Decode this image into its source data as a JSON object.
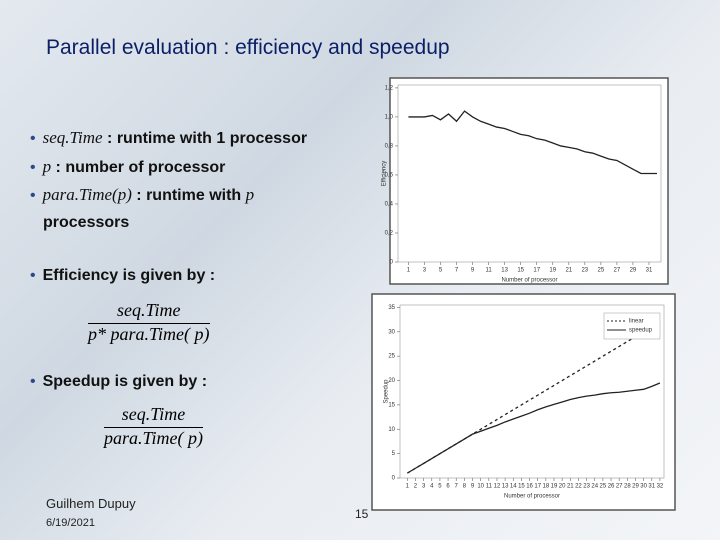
{
  "title": "Parallel evaluation : efficiency and speedup",
  "bullets": [
    {
      "term": "seq.Time",
      "text": " : runtime with 1 processor"
    },
    {
      "term": "p",
      "text": " : number of processor"
    },
    {
      "term": "para.Time(p)",
      "text": " : runtime with ",
      "term2": "p",
      "text2": "processors"
    },
    {
      "text": "Efficiency is given by :"
    },
    {
      "text": "Speedup is given by :"
    }
  ],
  "formulas": [
    {
      "numerator": "seq.Time",
      "denominator": "p* para.Time( p)"
    },
    {
      "numerator": "seq.Time",
      "denominator": "para.Time( p)"
    }
  ],
  "footer": {
    "author": "Guilhem Dupuy",
    "date": "6/19/2021",
    "page": "15"
  },
  "chart_data": [
    {
      "type": "line",
      "x_label": "Number of processor",
      "y_label": "Efficiency",
      "x": [
        1,
        2,
        3,
        4,
        5,
        6,
        7,
        8,
        9,
        10,
        11,
        12,
        13,
        14,
        15,
        16,
        17,
        18,
        19,
        20,
        21,
        22,
        23,
        24,
        25,
        26,
        27,
        28,
        29,
        30,
        31,
        32
      ],
      "series": [
        {
          "name": "efficiency",
          "color": "#222222",
          "values": [
            1.0,
            1.0,
            1.0,
            1.01,
            0.98,
            1.02,
            0.97,
            1.04,
            1.0,
            0.97,
            0.95,
            0.93,
            0.92,
            0.9,
            0.88,
            0.87,
            0.85,
            0.84,
            0.82,
            0.8,
            0.79,
            0.78,
            0.76,
            0.75,
            0.73,
            0.71,
            0.7,
            0.67,
            0.64,
            0.61,
            0.61,
            0.61
          ]
        }
      ],
      "xlim": [
        -0.3,
        32.5
      ],
      "xticks": [
        1,
        3,
        5,
        7,
        9,
        11,
        13,
        15,
        17,
        19,
        21,
        23,
        25,
        27,
        29,
        31
      ],
      "ylim": [
        0,
        1.22
      ],
      "yticks": [
        0,
        {
          "value": 0.2,
          "label": "0,2"
        },
        {
          "value": 0.4,
          "label": "0,4"
        },
        {
          "value": 0.6,
          "label": "0,6"
        },
        {
          "value": 0.8,
          "label": "0,8"
        },
        {
          "value": 1.0,
          "label": "1,0"
        },
        {
          "value": 1.2,
          "label": "1,2"
        }
      ],
      "grid": false
    },
    {
      "type": "line",
      "x_label": "Number of processor",
      "y_label": "Speedup",
      "x": [
        1,
        2,
        3,
        4,
        5,
        6,
        7,
        8,
        9,
        10,
        11,
        12,
        13,
        14,
        15,
        16,
        17,
        18,
        19,
        20,
        21,
        22,
        23,
        24,
        25,
        26,
        27,
        28,
        29,
        30,
        31,
        32
      ],
      "series": [
        {
          "name": "linear",
          "color": "#222222",
          "dashed": true,
          "values": [
            1,
            2,
            3,
            4,
            5,
            6,
            7,
            8,
            9,
            10,
            11,
            12,
            13,
            14,
            15,
            16,
            17,
            18,
            19,
            20,
            21,
            22,
            23,
            24,
            25,
            26,
            27,
            28,
            29,
            30,
            31,
            32
          ]
        },
        {
          "name": "speedup",
          "color": "#222222",
          "values": [
            1,
            2,
            3,
            4,
            5,
            6,
            7,
            8,
            9,
            9.6,
            10.2,
            10.8,
            11.5,
            12.1,
            12.7,
            13.3,
            14,
            14.6,
            15.1,
            15.6,
            16.1,
            16.5,
            16.8,
            17,
            17.3,
            17.5,
            17.6,
            17.8,
            18,
            18.2,
            18.8,
            19.5
          ]
        }
      ],
      "xlim": [
        0.1,
        32.5
      ],
      "xticks": [
        1,
        2,
        3,
        4,
        5,
        6,
        7,
        8,
        9,
        10,
        11,
        12,
        13,
        14,
        15,
        16,
        17,
        18,
        19,
        20,
        21,
        22,
        23,
        24,
        25,
        26,
        27,
        28,
        29,
        30,
        31,
        32
      ],
      "ylim": [
        0,
        35.5
      ],
      "yticks": [
        0,
        5,
        10,
        15,
        20,
        25,
        30,
        35
      ],
      "legend": "upper right",
      "grid": false
    }
  ]
}
